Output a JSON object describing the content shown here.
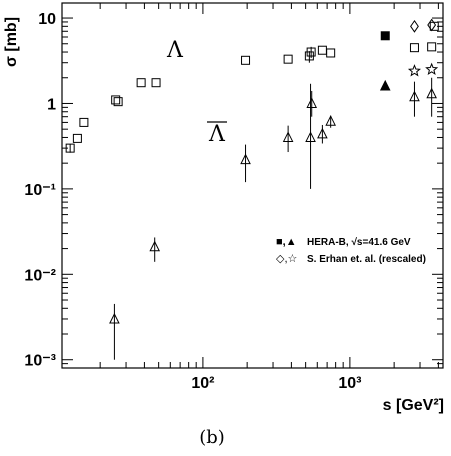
{
  "caption": "(b)",
  "chart_data": {
    "type": "scatter",
    "xlabel": "s [GeV²]",
    "ylabel": "σ [mb]",
    "xscale": "log",
    "yscale": "log",
    "xlim": [
      11,
      4300
    ],
    "ylim": [
      0.0008,
      15
    ],
    "x_ticks": [
      {
        "value": 100,
        "label": "10²"
      },
      {
        "value": 1000,
        "label": "10³"
      }
    ],
    "y_ticks": [
      {
        "value": 0.001,
        "label": "10⁻³"
      },
      {
        "value": 0.01,
        "label": "10⁻²"
      },
      {
        "value": 0.1,
        "label": "10⁻¹"
      },
      {
        "value": 1,
        "label": "1"
      },
      {
        "value": 10,
        "label": "10"
      }
    ],
    "annotations": [
      {
        "text": "Λ",
        "x": 48,
        "y": 6.0,
        "overline": false
      },
      {
        "text": "Λ",
        "x": 48,
        "y": 0.9,
        "overline": true
      }
    ],
    "legend": {
      "placement": "lower-right",
      "entries": [
        {
          "symbols": "■,▲",
          "text": "HERA-B, √s=41.6 GeV"
        },
        {
          "symbols": "◇,☆",
          "text": "S. Erhan et. al. (rescaled)"
        }
      ]
    },
    "series": [
      {
        "marker": "open-square",
        "label_ref": "Λ",
        "points": [
          {
            "x": 12.5,
            "y": 0.3,
            "err": [
              0.265,
              0.335
            ]
          },
          {
            "x": 14,
            "y": 0.39
          },
          {
            "x": 15.5,
            "y": 0.6
          },
          {
            "x": 25.5,
            "y": 1.1
          },
          {
            "x": 26.5,
            "y": 1.05
          },
          {
            "x": 38,
            "y": 1.75
          },
          {
            "x": 48,
            "y": 1.75
          },
          {
            "x": 195,
            "y": 3.2
          },
          {
            "x": 380,
            "y": 3.3
          },
          {
            "x": 530,
            "y": 3.6,
            "err": [
              3.0,
              4.1
            ]
          },
          {
            "x": 545,
            "y": 4.0,
            "err": [
              3.4,
              4.6
            ]
          },
          {
            "x": 650,
            "y": 4.2
          },
          {
            "x": 740,
            "y": 3.9
          },
          {
            "x": 2750,
            "y": 4.5
          },
          {
            "x": 3600,
            "y": 4.6
          },
          {
            "x": 3750,
            "y": 8.0
          }
        ]
      },
      {
        "marker": "open-triangle",
        "label_ref": "Λ̄",
        "points": [
          {
            "x": 25,
            "y": 0.003,
            "err": [
              0.001,
              0.0045
            ]
          },
          {
            "x": 47,
            "y": 0.021,
            "err": [
              0.014,
              0.027
            ]
          },
          {
            "x": 195,
            "y": 0.22,
            "err": [
              0.12,
              0.33
            ]
          },
          {
            "x": 380,
            "y": 0.4,
            "err": [
              0.27,
              0.55
            ]
          },
          {
            "x": 540,
            "y": 0.4,
            "err": [
              0.1,
              1.7
            ]
          },
          {
            "x": 550,
            "y": 1.0,
            "err": [
              0.7,
              1.4
            ]
          },
          {
            "x": 650,
            "y": 0.44,
            "err": [
              0.34,
              0.56
            ]
          },
          {
            "x": 740,
            "y": 0.62,
            "err": [
              0.52,
              0.72
            ]
          },
          {
            "x": 2750,
            "y": 1.2,
            "err": [
              0.7,
              1.8
            ]
          },
          {
            "x": 3600,
            "y": 1.3,
            "err": [
              0.7,
              2.0
            ]
          }
        ]
      },
      {
        "marker": "filled-square",
        "label_ref": "HERA-B",
        "points": [
          {
            "x": 1740,
            "y": 6.2
          }
        ]
      },
      {
        "marker": "filled-triangle",
        "label_ref": "HERA-B",
        "points": [
          {
            "x": 1740,
            "y": 1.6
          }
        ]
      },
      {
        "marker": "open-diamond",
        "label_ref": "S. Erhan et. al. (rescaled)",
        "points": [
          {
            "x": 2750,
            "y": 8.0
          },
          {
            "x": 3600,
            "y": 8.3
          }
        ]
      },
      {
        "marker": "open-star",
        "label_ref": "S. Erhan et. al. (rescaled)",
        "points": [
          {
            "x": 2750,
            "y": 2.4
          },
          {
            "x": 3600,
            "y": 2.5
          }
        ]
      }
    ]
  }
}
